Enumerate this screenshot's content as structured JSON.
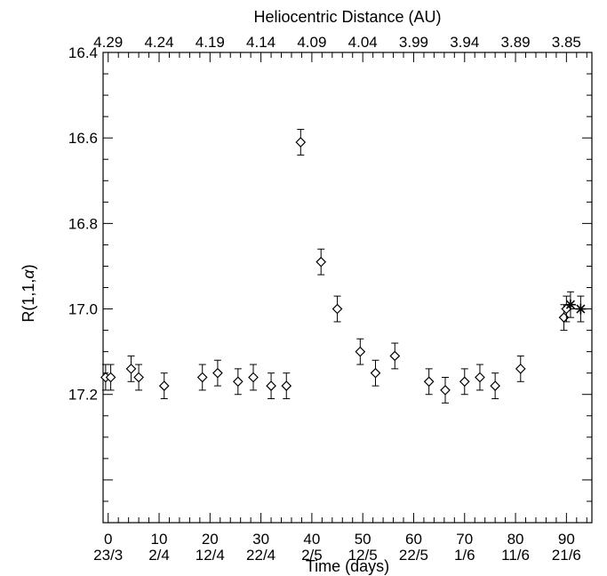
{
  "chart_data": {
    "type": "scatter",
    "top_axis_title": "Heliocentric Distance (AU)",
    "top_tick_labels": [
      "4.29",
      "4.24",
      "4.19",
      "4.14",
      "4.09",
      "4.04",
      "3.99",
      "3.94",
      "3.89",
      "3.85"
    ],
    "xlabel": "Time (days)",
    "ylabel": "R(1,1,α)",
    "ylabel_parts": {
      "main": "R(1,1,",
      "greek": "α",
      "close": ")"
    },
    "xlim": [
      -1,
      95
    ],
    "ylim": [
      16.4,
      17.5
    ],
    "y_inverted": true,
    "x_ticks": [
      0,
      10,
      20,
      30,
      40,
      50,
      60,
      70,
      80,
      90
    ],
    "x_tick_labels": [
      "0",
      "10",
      "20",
      "30",
      "40",
      "50",
      "60",
      "70",
      "80",
      "90"
    ],
    "x_date_labels": [
      "23/3",
      "2/4",
      "12/4",
      "22/4",
      "2/5",
      "12/5",
      "22/5",
      "1/6",
      "11/6",
      "21/6"
    ],
    "y_ticks": [
      16.4,
      16.6,
      16.8,
      17.0,
      17.2
    ],
    "y_tick_labels": [
      "16.4",
      "16.6",
      "16.8",
      "17.0",
      "17.2"
    ],
    "reference_line_y": 17.0,
    "series": [
      {
        "marker": "diamond",
        "x": [
          -0.5,
          0.5,
          4.5,
          6,
          11,
          18.5,
          21.5,
          25.5,
          28.5,
          32,
          35,
          37.8,
          41.8,
          45,
          49.5,
          52.5,
          56.3,
          63,
          66.2,
          70,
          73,
          76,
          81,
          89.5,
          90
        ],
        "y": [
          17.16,
          17.16,
          17.14,
          17.16,
          17.18,
          17.16,
          17.15,
          17.17,
          17.16,
          17.18,
          17.18,
          16.61,
          16.89,
          17.0,
          17.1,
          17.15,
          17.11,
          17.17,
          17.19,
          17.17,
          17.16,
          17.18,
          17.14,
          17.02,
          17.0
        ],
        "err": [
          0.03,
          0.03,
          0.03,
          0.03,
          0.03,
          0.03,
          0.03,
          0.03,
          0.03,
          0.03,
          0.03,
          0.03,
          0.03,
          0.03,
          0.03,
          0.03,
          0.03,
          0.03,
          0.03,
          0.03,
          0.03,
          0.03,
          0.03,
          0.03,
          0.03
        ]
      },
      {
        "marker": "asterisk",
        "x": [
          90.8,
          92.8
        ],
        "y": [
          16.99,
          17.0
        ],
        "err": [
          0.03,
          0.03
        ]
      }
    ]
  }
}
